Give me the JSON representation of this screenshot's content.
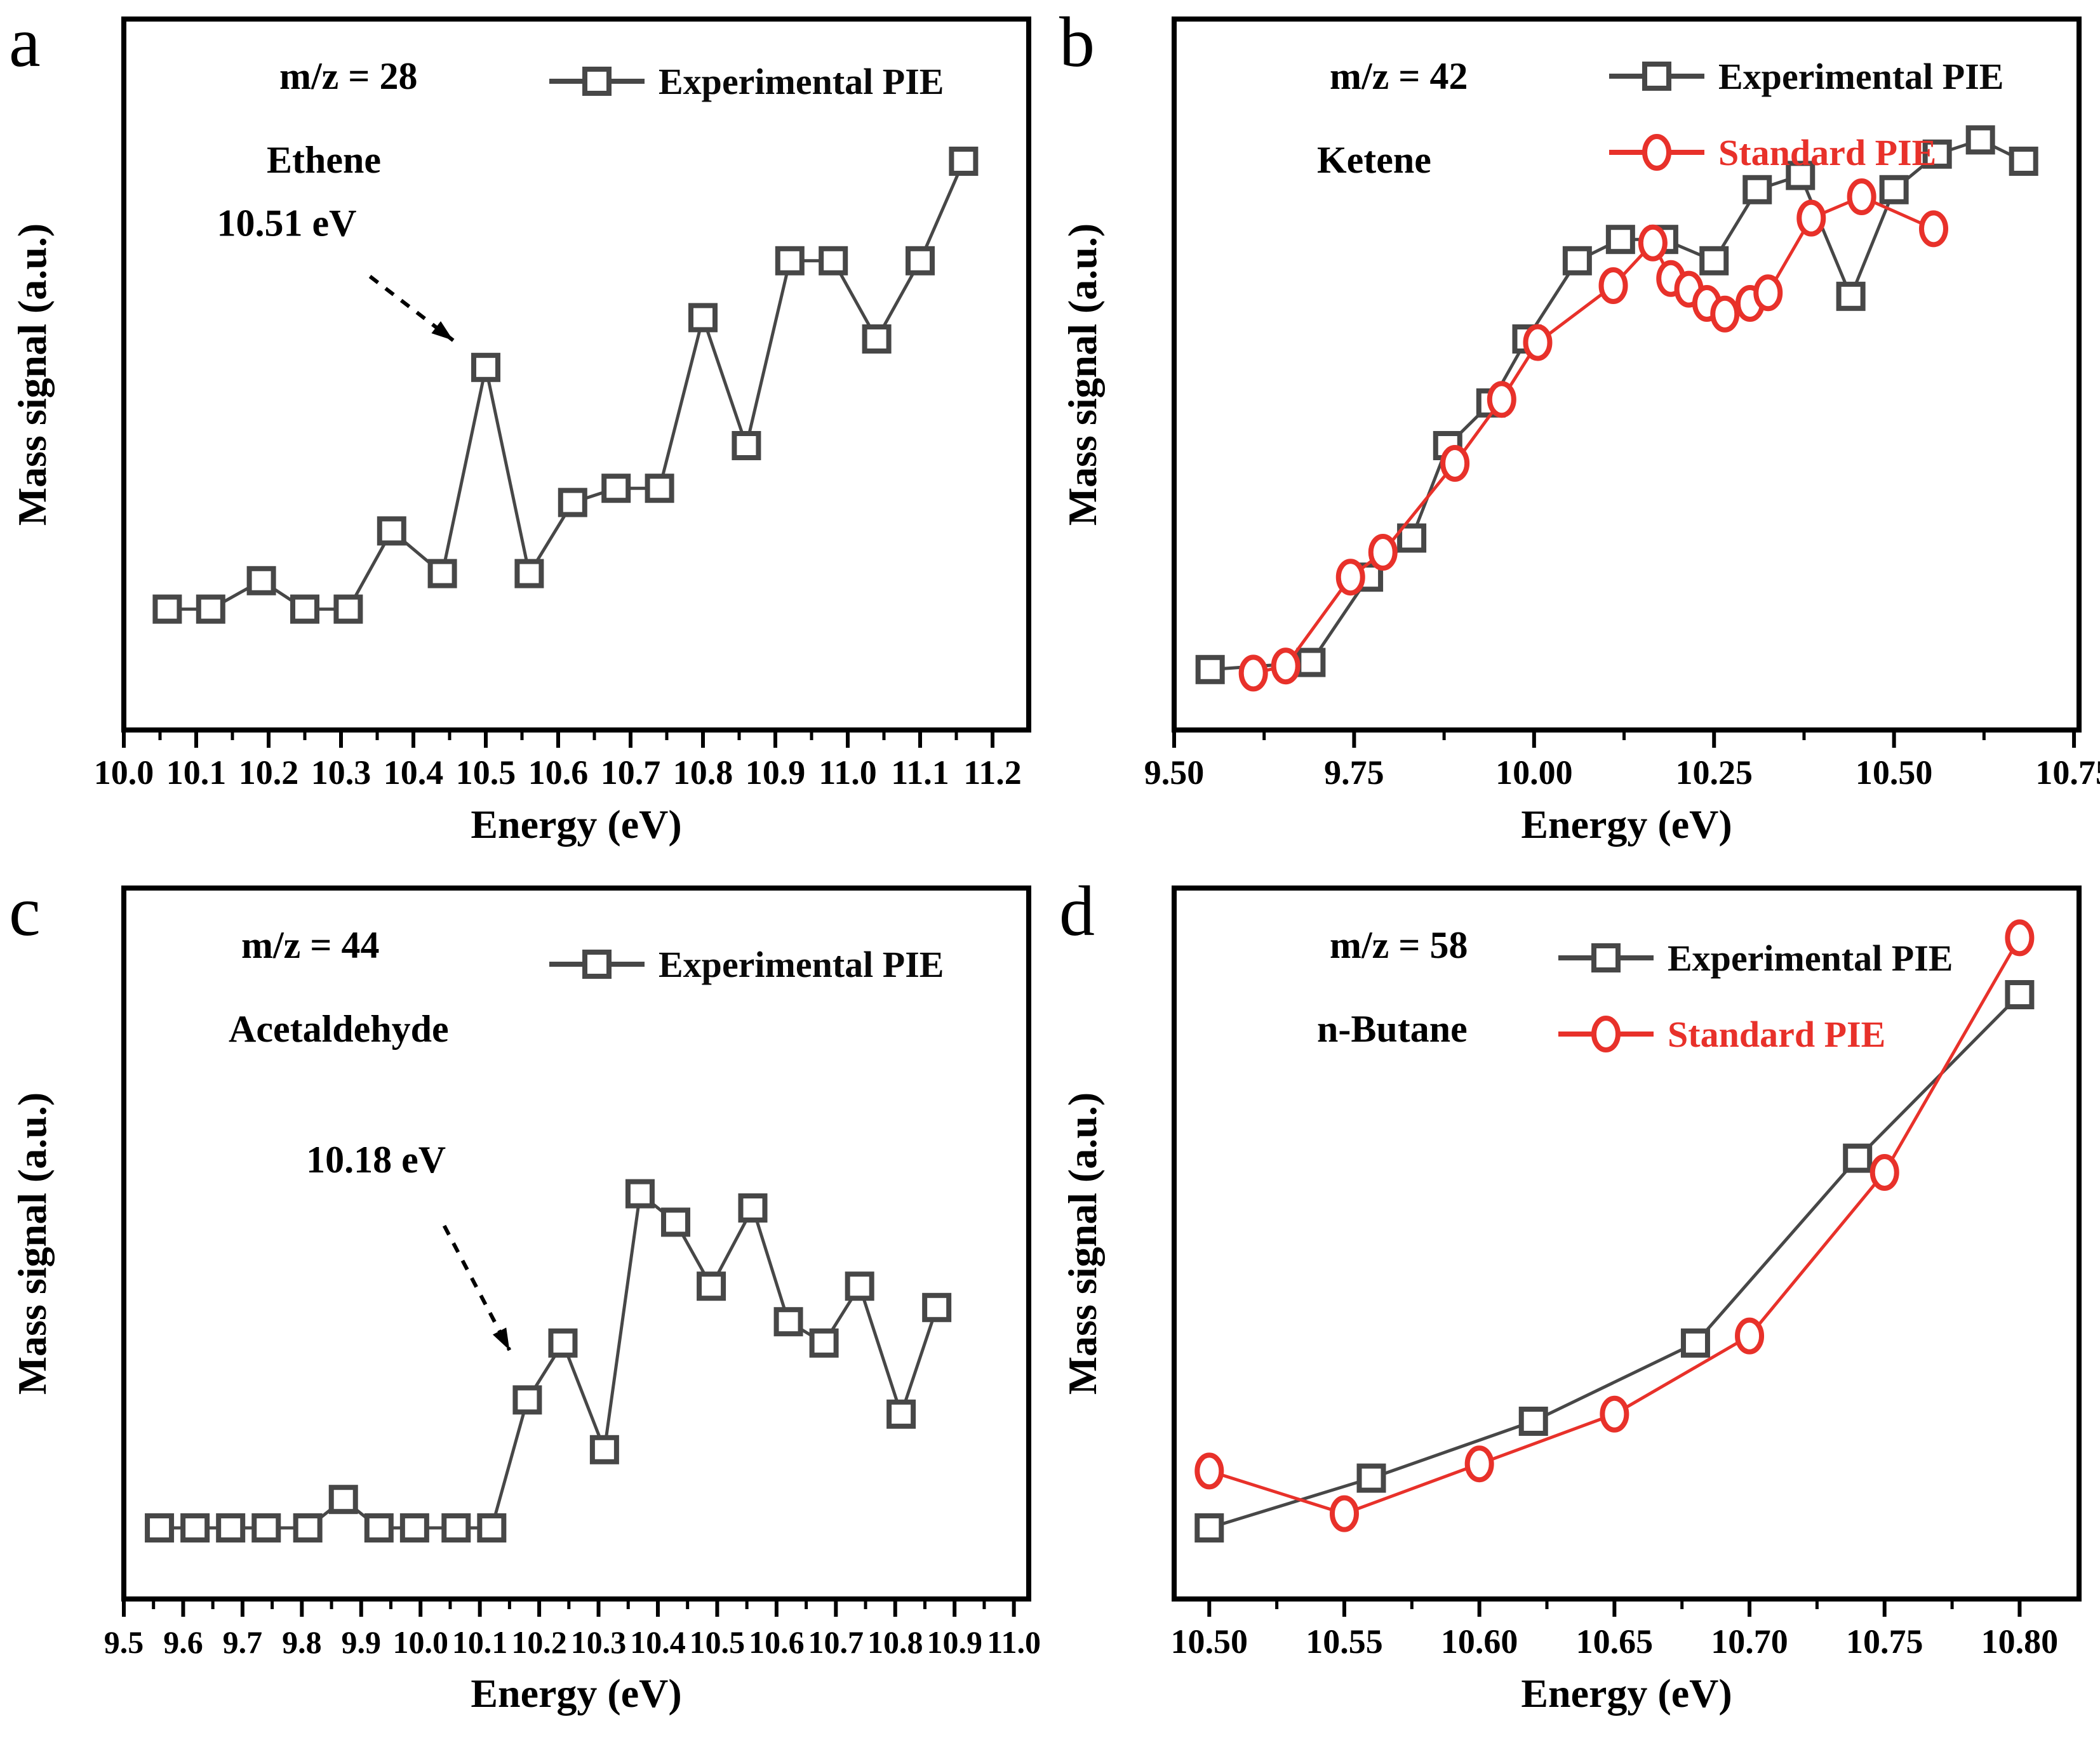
{
  "figure": {
    "background": "#ffffff",
    "text_color": "#000000",
    "accent_experimental": "#474747",
    "accent_standard": "#e8312a"
  },
  "chart_data": [
    {
      "panel": "a",
      "type": "line",
      "mz": "m/z = 28",
      "species": "Ethene",
      "xlabel": "Energy (eV)",
      "ylabel": "Mass signal (a.u.)",
      "xlim": [
        10.0,
        11.25
      ],
      "ylim": [
        0,
        1
      ],
      "grid": false,
      "legend_position": "top-right",
      "x_major_ticks": [
        "10.0",
        "10.1",
        "10.2",
        "10.3",
        "10.4",
        "10.5",
        "10.6",
        "10.7",
        "10.8",
        "10.9",
        "11.0",
        "11.1",
        "11.2"
      ],
      "annotation": {
        "text": "10.51 eV",
        "text_pos": [
          10.225,
          0.695
        ],
        "arrow_from": [
          10.34,
          0.638
        ],
        "arrow_to": [
          10.455,
          0.548
        ]
      },
      "series": [
        {
          "name": "Experimental PIE",
          "marker": "square",
          "color": "#474747",
          "x": [
            10.06,
            10.12,
            10.19,
            10.25,
            10.31,
            10.37,
            10.44,
            10.5,
            10.56,
            10.62,
            10.68,
            10.74,
            10.8,
            10.86,
            10.92,
            10.98,
            11.04,
            11.1,
            11.16
          ],
          "y": [
            0.17,
            0.17,
            0.21,
            0.17,
            0.17,
            0.28,
            0.22,
            0.51,
            0.22,
            0.32,
            0.34,
            0.34,
            0.58,
            0.4,
            0.66,
            0.66,
            0.55,
            0.66,
            0.8
          ]
        }
      ]
    },
    {
      "panel": "b",
      "type": "line",
      "mz": "m/z = 42",
      "species": "Ketene",
      "xlabel": "Energy (eV)",
      "ylabel": "Mass signal (a.u.)",
      "xlim": [
        9.5,
        10.757
      ],
      "ylim": [
        0,
        1
      ],
      "grid": false,
      "legend_position": "top-right",
      "x_major_ticks": [
        "9.50",
        "9.75",
        "10.00",
        "10.25",
        "10.50",
        "10.75"
      ],
      "series": [
        {
          "name": "Experimental PIE",
          "marker": "square",
          "color": "#474747",
          "x": [
            9.55,
            9.69,
            9.77,
            9.83,
            9.88,
            9.94,
            9.99,
            10.06,
            10.12,
            10.18,
            10.25,
            10.31,
            10.37,
            10.44,
            10.5,
            10.56,
            10.62,
            10.68
          ],
          "y": [
            0.085,
            0.095,
            0.215,
            0.27,
            0.4,
            0.46,
            0.55,
            0.66,
            0.69,
            0.69,
            0.66,
            0.76,
            0.78,
            0.61,
            0.76,
            0.81,
            0.83,
            0.8
          ]
        },
        {
          "name": "Standard PIE",
          "marker": "circle",
          "color": "#e8312a",
          "x": [
            9.61,
            9.655,
            9.745,
            9.79,
            9.89,
            9.955,
            10.005,
            10.11,
            10.165,
            10.19,
            10.215,
            10.24,
            10.265,
            10.3,
            10.325,
            10.385,
            10.455,
            10.555
          ],
          "y": [
            0.08,
            0.09,
            0.215,
            0.25,
            0.375,
            0.465,
            0.545,
            0.625,
            0.685,
            0.635,
            0.62,
            0.6,
            0.585,
            0.6,
            0.615,
            0.72,
            0.75,
            0.705
          ]
        }
      ]
    },
    {
      "panel": "c",
      "type": "line",
      "mz": "m/z = 44",
      "species": "Acetaldehyde",
      "xlabel": "Energy (eV)",
      "ylabel": "Mass signal (a.u.)",
      "xlim": [
        9.5,
        11.025
      ],
      "ylim": [
        0,
        1
      ],
      "grid": false,
      "legend_position": "top-right",
      "x_major_ticks": [
        "9.5",
        "9.6",
        "9.7",
        "9.8",
        "9.9",
        "10.0",
        "10.1",
        "10.2",
        "10.3",
        "10.4",
        "10.5",
        "10.6",
        "10.7",
        "10.8",
        "10.9",
        "11.0"
      ],
      "annotation": {
        "text": "10.18 eV",
        "text_pos": [
          9.925,
          0.6
        ],
        "arrow_from": [
          10.04,
          0.525
        ],
        "arrow_to": [
          10.15,
          0.35
        ]
      },
      "series": [
        {
          "name": "Experimental PIE",
          "marker": "square",
          "color": "#474747",
          "x": [
            9.56,
            9.62,
            9.68,
            9.74,
            9.81,
            9.87,
            9.93,
            9.99,
            10.06,
            10.12,
            10.18,
            10.24,
            10.31,
            10.37,
            10.43,
            10.49,
            10.56,
            10.62,
            10.68,
            10.74,
            10.81,
            10.87
          ],
          "y": [
            0.1,
            0.1,
            0.1,
            0.1,
            0.1,
            0.14,
            0.1,
            0.1,
            0.1,
            0.1,
            0.28,
            0.36,
            0.21,
            0.57,
            0.53,
            0.44,
            0.55,
            0.39,
            0.36,
            0.44,
            0.26,
            0.41
          ]
        }
      ]
    },
    {
      "panel": "d",
      "type": "line",
      "mz": "m/z = 58",
      "species": "n-Butane",
      "xlabel": "Energy (eV)",
      "ylabel": "Mass signal (a.u.)",
      "xlim": [
        10.487,
        10.822
      ],
      "ylim": [
        0,
        1
      ],
      "grid": false,
      "legend_position": "top-right",
      "x_major_ticks": [
        "10.50",
        "10.55",
        "10.60",
        "10.65",
        "10.70",
        "10.75",
        "10.80"
      ],
      "series": [
        {
          "name": "Experimental PIE",
          "marker": "square",
          "color": "#474747",
          "x": [
            10.5,
            10.56,
            10.62,
            10.68,
            10.74,
            10.8
          ],
          "y": [
            0.1,
            0.17,
            0.25,
            0.36,
            0.62,
            0.85
          ]
        },
        {
          "name": "Standard PIE",
          "marker": "circle",
          "color": "#e8312a",
          "x": [
            10.5,
            10.55,
            10.6,
            10.65,
            10.7,
            10.75,
            10.8
          ],
          "y": [
            0.18,
            0.12,
            0.19,
            0.26,
            0.37,
            0.6,
            0.93
          ]
        }
      ]
    }
  ]
}
